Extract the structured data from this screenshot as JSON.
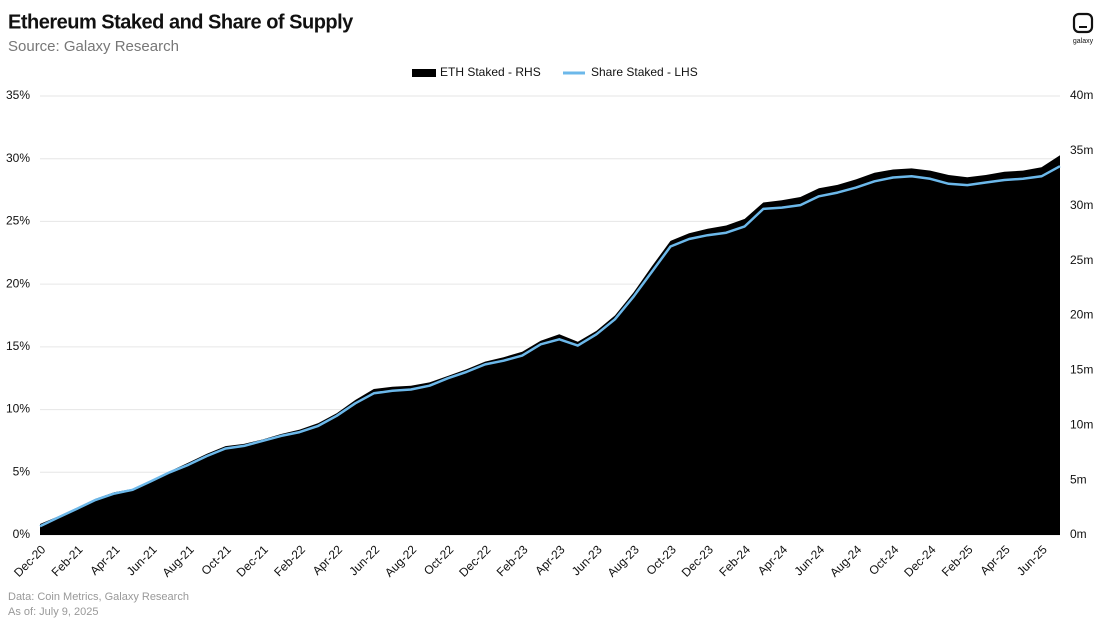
{
  "chart_data": {
    "type": "area-line",
    "title": "Ethereum Staked and Share of Supply",
    "subtitle": "Source: Galaxy Research",
    "logo": "galaxy",
    "notes": [
      "Data: Coin Metrics, Galaxy Research",
      "As of: July 9, 2025"
    ],
    "categories": [
      "Dec-20",
      null,
      "Feb-21",
      null,
      "Apr-21",
      null,
      "Jun-21",
      null,
      "Aug-21",
      null,
      "Oct-21",
      null,
      "Dec-21",
      null,
      "Feb-22",
      null,
      "Apr-22",
      null,
      "Jun-22",
      null,
      "Aug-22",
      null,
      "Oct-22",
      null,
      "Dec-22",
      null,
      "Feb-23",
      null,
      "Apr-23",
      null,
      "Jun-23",
      null,
      "Aug-23",
      null,
      "Oct-23",
      null,
      "Dec-23",
      null,
      "Feb-24",
      null,
      "Apr-24",
      null,
      "Jun-24",
      null,
      "Aug-24",
      null,
      "Oct-24",
      null,
      "Dec-24",
      null,
      "Feb-25",
      null,
      "Apr-25",
      null,
      "Jun-25",
      null
    ],
    "series": [
      {
        "name": "ETH Staked - RHS",
        "color": "#000000",
        "axis": "y2",
        "kind": "area",
        "values": [
          1.0,
          1.7,
          2.5,
          3.3,
          3.9,
          4.2,
          5.0,
          5.8,
          6.6,
          7.4,
          8.1,
          8.3,
          8.7,
          9.2,
          9.6,
          10.2,
          11.1,
          12.3,
          13.3,
          13.5,
          13.6,
          13.9,
          14.5,
          15.1,
          15.8,
          16.2,
          16.7,
          17.7,
          18.3,
          17.6,
          18.6,
          20.0,
          22.1,
          24.5,
          26.8,
          27.5,
          27.9,
          28.2,
          28.8,
          30.3,
          30.5,
          30.8,
          31.6,
          31.9,
          32.4,
          33.0,
          33.3,
          33.4,
          33.2,
          32.8,
          32.6,
          32.8,
          33.1,
          33.2,
          33.5,
          34.6
        ]
      },
      {
        "name": "Share Staked - LHS",
        "color": "#6cb8ea",
        "kind": "line",
        "values": [
          0.7,
          1.4,
          2.1,
          2.8,
          3.3,
          3.6,
          4.3,
          5.0,
          5.6,
          6.3,
          6.9,
          7.1,
          7.5,
          7.9,
          8.2,
          8.7,
          9.5,
          10.5,
          11.3,
          11.5,
          11.6,
          11.9,
          12.5,
          13.0,
          13.6,
          13.9,
          14.3,
          15.2,
          15.6,
          15.1,
          16.0,
          17.2,
          19.0,
          21.0,
          23.0,
          23.6,
          23.9,
          24.1,
          24.6,
          26.0,
          26.1,
          26.3,
          27.0,
          27.3,
          27.7,
          28.2,
          28.5,
          28.6,
          28.4,
          28.0,
          27.9,
          28.1,
          28.3,
          28.4,
          28.6,
          29.4
        ]
      }
    ],
    "ylim": [
      0,
      35
    ],
    "yticks": [
      {
        "value": 0,
        "label": "0%"
      },
      {
        "value": 5,
        "label": "5%"
      },
      {
        "value": 10,
        "label": "10%"
      },
      {
        "value": 15,
        "label": "15%"
      },
      {
        "value": 20,
        "label": "20%"
      },
      {
        "value": 25,
        "label": "25%"
      },
      {
        "value": 30,
        "label": "30%"
      },
      {
        "value": 35,
        "label": "35%"
      }
    ],
    "y2lim": [
      0,
      40
    ],
    "y2ticks": [
      {
        "value": 0,
        "label": "0m"
      },
      {
        "value": 5,
        "label": "5m"
      },
      {
        "value": 10,
        "label": "10m"
      },
      {
        "value": 15,
        "label": "15m"
      },
      {
        "value": 20,
        "label": "20m"
      },
      {
        "value": 25,
        "label": "25m"
      },
      {
        "value": 30,
        "label": "30m"
      },
      {
        "value": 35,
        "label": "35m"
      },
      {
        "value": 40,
        "label": "40m"
      }
    ],
    "grid": true,
    "legend": "top"
  }
}
